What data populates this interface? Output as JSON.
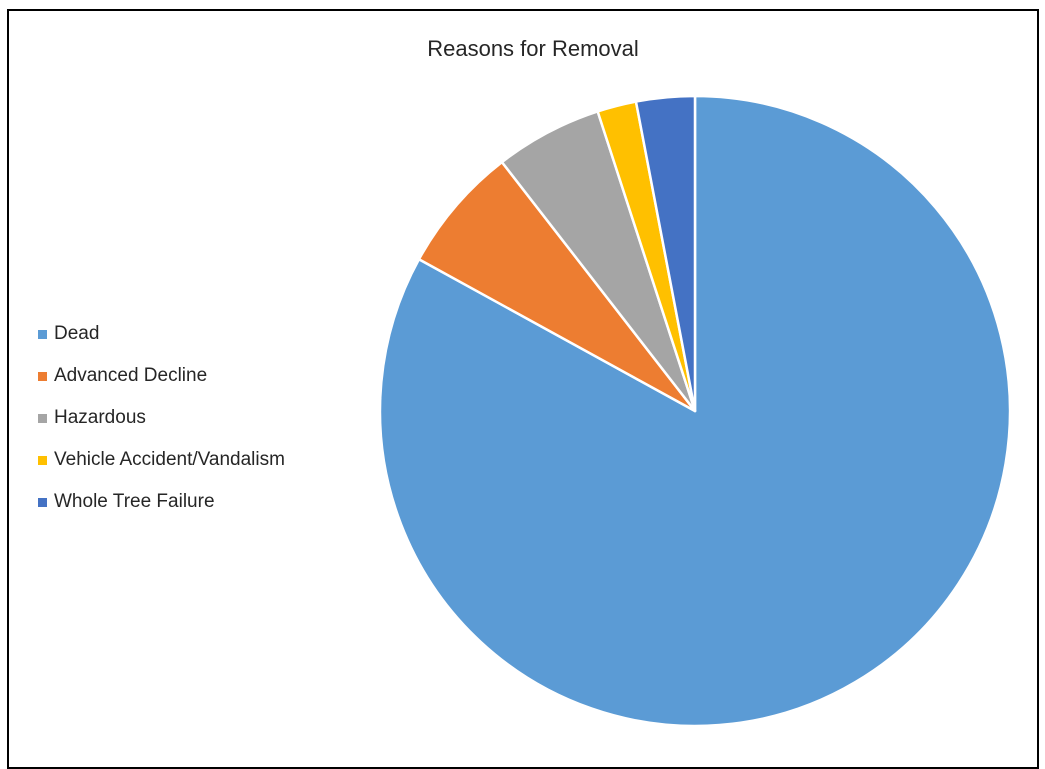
{
  "chart_data": {
    "type": "pie",
    "title": "Reasons for Removal",
    "legend_position": "left",
    "categories": [
      "Dead",
      "Advanced Decline",
      "Hazardous",
      "Vehicle Accident/Vandalism",
      "Whole Tree Failure"
    ],
    "values": [
      83,
      6.5,
      5.5,
      2,
      3
    ],
    "unit": "percent",
    "colors": [
      "#5B9BD5",
      "#ED7D31",
      "#A5A5A5",
      "#FFC000",
      "#4472C4"
    ],
    "start_angle_deg": 0,
    "direction": "clockwise"
  }
}
